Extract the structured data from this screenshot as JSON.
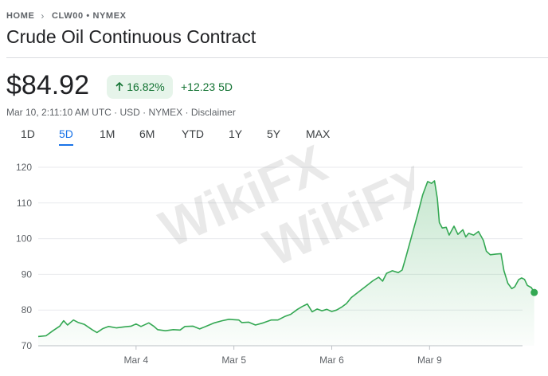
{
  "breadcrumb": {
    "home": "HOME",
    "ticker": "CLW00 • NYMEX"
  },
  "title": "Crude Oil Continuous Contract",
  "quote": {
    "price": "$84.92",
    "pct_change": "16.82%",
    "abs_change": "+12.23 5D",
    "meta": "Mar 10, 2:11:10 AM UTC · USD · NYMEX · Disclaimer"
  },
  "tabs": [
    {
      "label": "1D",
      "active": false
    },
    {
      "label": "5D",
      "active": true
    },
    {
      "label": "1M",
      "active": false
    },
    {
      "label": "6M",
      "active": false
    },
    {
      "label": "YTD",
      "active": false
    },
    {
      "label": "1Y",
      "active": false
    },
    {
      "label": "5Y",
      "active": false
    },
    {
      "label": "MAX",
      "active": false
    }
  ],
  "watermark": "WikiFX",
  "colors": {
    "up": "#137333",
    "line": "#34a853",
    "accent": "#1a73e8"
  },
  "chart_data": {
    "type": "area",
    "ylim": [
      70,
      120
    ],
    "yticks": [
      70,
      80,
      90,
      100,
      110,
      120
    ],
    "xlim": [
      0,
      4.95
    ],
    "xticks": [
      {
        "x": 1,
        "label": "Mar 4"
      },
      {
        "x": 2,
        "label": "Mar 5"
      },
      {
        "x": 3,
        "label": "Mar 6"
      },
      {
        "x": 4,
        "label": "Mar 9"
      }
    ],
    "grid": true,
    "series": [
      {
        "values": [
          [
            0.0,
            72.6
          ],
          [
            0.08,
            72.8
          ],
          [
            0.15,
            74.2
          ],
          [
            0.22,
            75.5
          ],
          [
            0.26,
            77.0
          ],
          [
            0.3,
            75.8
          ],
          [
            0.36,
            77.2
          ],
          [
            0.41,
            76.5
          ],
          [
            0.47,
            76.0
          ],
          [
            0.55,
            74.5
          ],
          [
            0.6,
            73.7
          ],
          [
            0.66,
            74.8
          ],
          [
            0.72,
            75.4
          ],
          [
            0.8,
            75.0
          ],
          [
            0.88,
            75.3
          ],
          [
            0.95,
            75.5
          ],
          [
            1.0,
            76.1
          ],
          [
            1.05,
            75.4
          ],
          [
            1.13,
            76.4
          ],
          [
            1.18,
            75.5
          ],
          [
            1.22,
            74.5
          ],
          [
            1.3,
            74.2
          ],
          [
            1.38,
            74.5
          ],
          [
            1.45,
            74.4
          ],
          [
            1.5,
            75.4
          ],
          [
            1.58,
            75.5
          ],
          [
            1.65,
            74.7
          ],
          [
            1.72,
            75.5
          ],
          [
            1.8,
            76.4
          ],
          [
            1.88,
            77.0
          ],
          [
            1.95,
            77.4
          ],
          [
            2.0,
            77.3
          ],
          [
            2.05,
            77.2
          ],
          [
            2.08,
            76.5
          ],
          [
            2.15,
            76.6
          ],
          [
            2.22,
            75.8
          ],
          [
            2.3,
            76.4
          ],
          [
            2.38,
            77.2
          ],
          [
            2.45,
            77.2
          ],
          [
            2.52,
            78.2
          ],
          [
            2.58,
            78.8
          ],
          [
            2.65,
            80.2
          ],
          [
            2.7,
            81.0
          ],
          [
            2.75,
            81.7
          ],
          [
            2.8,
            79.5
          ],
          [
            2.85,
            80.3
          ],
          [
            2.9,
            79.8
          ],
          [
            2.95,
            80.2
          ],
          [
            3.0,
            79.6
          ],
          [
            3.05,
            80.0
          ],
          [
            3.1,
            80.8
          ],
          [
            3.15,
            81.8
          ],
          [
            3.2,
            83.5
          ],
          [
            3.28,
            85.2
          ],
          [
            3.35,
            86.7
          ],
          [
            3.42,
            88.2
          ],
          [
            3.48,
            89.2
          ],
          [
            3.52,
            88.1
          ],
          [
            3.56,
            90.3
          ],
          [
            3.62,
            91.0
          ],
          [
            3.68,
            90.5
          ],
          [
            3.72,
            91.2
          ],
          [
            3.76,
            95.0
          ],
          [
            3.82,
            101.0
          ],
          [
            3.88,
            107.0
          ],
          [
            3.93,
            112.3
          ],
          [
            3.98,
            116.0
          ],
          [
            4.02,
            115.5
          ],
          [
            4.05,
            116.2
          ],
          [
            4.08,
            111.2
          ],
          [
            4.1,
            104.5
          ],
          [
            4.13,
            103.0
          ],
          [
            4.17,
            103.2
          ],
          [
            4.2,
            101.0
          ],
          [
            4.25,
            103.5
          ],
          [
            4.29,
            101.2
          ],
          [
            4.34,
            102.5
          ],
          [
            4.37,
            100.5
          ],
          [
            4.4,
            101.5
          ],
          [
            4.45,
            101.0
          ],
          [
            4.5,
            102.0
          ],
          [
            4.55,
            99.5
          ],
          [
            4.58,
            96.5
          ],
          [
            4.62,
            95.5
          ],
          [
            4.68,
            95.7
          ],
          [
            4.73,
            95.8
          ],
          [
            4.76,
            91.0
          ],
          [
            4.8,
            87.5
          ],
          [
            4.84,
            86.0
          ],
          [
            4.87,
            86.5
          ],
          [
            4.91,
            88.5
          ],
          [
            4.94,
            89.0
          ],
          [
            4.97,
            88.6
          ],
          [
            5.0,
            86.9
          ],
          [
            5.04,
            86.3
          ],
          [
            5.07,
            84.92
          ]
        ]
      }
    ]
  }
}
